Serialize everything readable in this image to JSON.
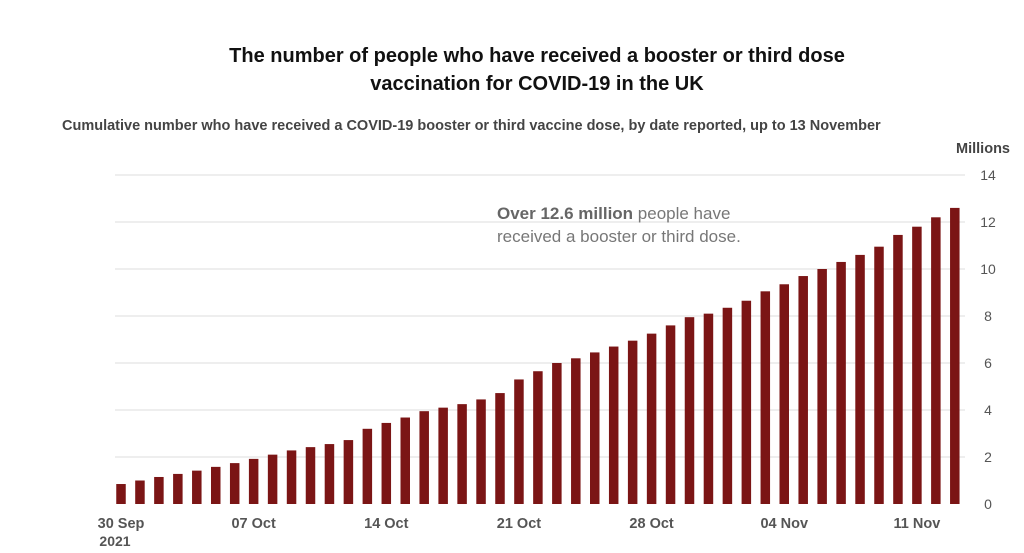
{
  "title_line1": "The number of people who have received a booster or third dose",
  "title_line2": "vaccination for COVID-19 in the UK",
  "subtitle": "Cumulative number who have received a COVID-19 booster or third vaccine dose, by date reported, up to 13 November",
  "unit_label": "Millions",
  "annotation": {
    "strong": "Over 12.6 million",
    "rest": " people have received a booster or third dose."
  },
  "colors": {
    "bar": "#7b1515",
    "grid": "#dddddd",
    "axis_text": "#555555"
  },
  "chart_data": {
    "type": "bar",
    "x_start": "30 Sep 2021",
    "x_end": "13 Nov 2021",
    "x_tick_labels": [
      "30 Sep",
      "07 Oct",
      "14 Oct",
      "21 Oct",
      "28 Oct",
      "04 Nov",
      "11 Nov"
    ],
    "x_tick_sublabel": "2021",
    "y_ticks": [
      0,
      2,
      4,
      6,
      8,
      10,
      12,
      14
    ],
    "ylim": [
      0,
      14
    ],
    "y_axis_position": "right",
    "grid": true,
    "values": [
      0.85,
      1.0,
      1.15,
      1.28,
      1.42,
      1.58,
      1.74,
      1.92,
      2.1,
      2.28,
      2.42,
      2.55,
      2.72,
      3.2,
      3.45,
      3.68,
      3.95,
      4.1,
      4.25,
      4.45,
      4.72,
      5.3,
      5.65,
      6.0,
      6.2,
      6.45,
      6.7,
      6.95,
      7.25,
      7.6,
      7.95,
      8.1,
      8.35,
      8.65,
      9.05,
      9.35,
      9.7,
      10.0,
      10.3,
      10.6,
      10.95,
      11.45,
      11.8,
      12.2,
      12.6
    ]
  }
}
